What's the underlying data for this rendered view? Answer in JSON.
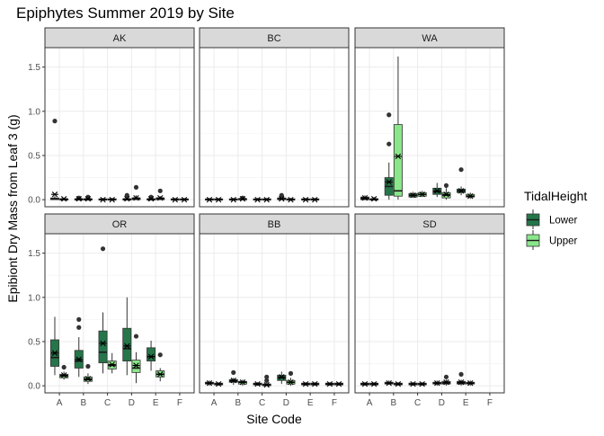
{
  "chart_data": {
    "type": "boxplot",
    "title": "Epiphytes Summer 2019 by Site",
    "xlabel": "Site Code",
    "ylabel": "Epibiont Dry Mass from Leaf 3 (g)",
    "ylim": [
      -0.08,
      1.72
    ],
    "yticks": [
      0.0,
      0.5,
      1.0,
      1.5
    ],
    "ytick_labels": [
      "0.0",
      "0.5",
      "1.0",
      "1.5"
    ],
    "categories": [
      "A",
      "B",
      "C",
      "D",
      "E",
      "F"
    ],
    "grid": true,
    "legend": {
      "title": "TidalHeight",
      "position": "right",
      "entries": [
        {
          "label": "Lower",
          "color": "#25764a"
        },
        {
          "label": "Upper",
          "color": "#8ae68a"
        }
      ]
    },
    "panels": [
      {
        "name": "AK",
        "groups": [
          {
            "site": "A",
            "tide": "Lower",
            "min": 0.0,
            "q1": 0.0,
            "median": 0.01,
            "q3": 0.02,
            "max": 0.04,
            "mean": 0.06,
            "outliers": [
              0.89
            ]
          },
          {
            "site": "A",
            "tide": "Upper",
            "min": 0.0,
            "q1": 0.0,
            "median": 0.0,
            "q3": 0.01,
            "max": 0.02,
            "mean": 0.01,
            "outliers": []
          },
          {
            "site": "B",
            "tide": "Lower",
            "min": 0.0,
            "q1": 0.0,
            "median": 0.0,
            "q3": 0.01,
            "max": 0.02,
            "mean": 0.01,
            "outliers": [
              0.02
            ]
          },
          {
            "site": "B",
            "tide": "Upper",
            "min": 0.0,
            "q1": 0.0,
            "median": 0.0,
            "q3": 0.01,
            "max": 0.02,
            "mean": 0.01,
            "outliers": [
              0.03
            ]
          },
          {
            "site": "C",
            "tide": "Lower",
            "min": 0.0,
            "q1": 0.0,
            "median": 0.0,
            "q3": 0.01,
            "max": 0.02,
            "mean": 0.0,
            "outliers": []
          },
          {
            "site": "C",
            "tide": "Upper",
            "min": 0.0,
            "q1": 0.0,
            "median": 0.0,
            "q3": 0.01,
            "max": 0.02,
            "mean": 0.0,
            "outliers": []
          },
          {
            "site": "D",
            "tide": "Lower",
            "min": 0.0,
            "q1": 0.0,
            "median": 0.0,
            "q3": 0.01,
            "max": 0.03,
            "mean": 0.01,
            "outliers": [
              0.05
            ]
          },
          {
            "site": "D",
            "tide": "Upper",
            "min": 0.0,
            "q1": 0.0,
            "median": 0.01,
            "q3": 0.02,
            "max": 0.05,
            "mean": 0.02,
            "outliers": [
              0.14
            ]
          },
          {
            "site": "E",
            "tide": "Lower",
            "min": 0.0,
            "q1": 0.0,
            "median": 0.0,
            "q3": 0.01,
            "max": 0.02,
            "mean": 0.01,
            "outliers": [
              0.03
            ]
          },
          {
            "site": "E",
            "tide": "Upper",
            "min": 0.0,
            "q1": 0.0,
            "median": 0.01,
            "q3": 0.02,
            "max": 0.04,
            "mean": 0.02,
            "outliers": [
              0.1
            ]
          },
          {
            "site": "F",
            "tide": "Lower",
            "min": 0.0,
            "q1": 0.0,
            "median": 0.0,
            "q3": 0.01,
            "max": 0.02,
            "mean": 0.0,
            "outliers": []
          },
          {
            "site": "F",
            "tide": "Upper",
            "min": 0.0,
            "q1": 0.0,
            "median": 0.0,
            "q3": 0.01,
            "max": 0.02,
            "mean": 0.0,
            "outliers": []
          }
        ]
      },
      {
        "name": "BC",
        "groups": [
          {
            "site": "A",
            "tide": "Lower",
            "min": 0.0,
            "q1": 0.0,
            "median": 0.0,
            "q3": 0.01,
            "max": 0.02,
            "mean": 0.0,
            "outliers": []
          },
          {
            "site": "A",
            "tide": "Upper",
            "min": 0.0,
            "q1": 0.0,
            "median": 0.0,
            "q3": 0.01,
            "max": 0.02,
            "mean": 0.0,
            "outliers": []
          },
          {
            "site": "B",
            "tide": "Lower",
            "min": 0.0,
            "q1": 0.0,
            "median": 0.0,
            "q3": 0.01,
            "max": 0.02,
            "mean": 0.0,
            "outliers": []
          },
          {
            "site": "B",
            "tide": "Upper",
            "min": 0.0,
            "q1": 0.0,
            "median": 0.01,
            "q3": 0.01,
            "max": 0.02,
            "mean": 0.01,
            "outliers": [
              0.02
            ]
          },
          {
            "site": "C",
            "tide": "Lower",
            "min": 0.0,
            "q1": 0.0,
            "median": 0.0,
            "q3": 0.01,
            "max": 0.02,
            "mean": 0.0,
            "outliers": []
          },
          {
            "site": "C",
            "tide": "Upper",
            "min": 0.0,
            "q1": 0.0,
            "median": 0.0,
            "q3": 0.01,
            "max": 0.02,
            "mean": 0.0,
            "outliers": []
          },
          {
            "site": "D",
            "tide": "Lower",
            "min": 0.0,
            "q1": 0.0,
            "median": 0.01,
            "q3": 0.02,
            "max": 0.03,
            "mean": 0.01,
            "outliers": [
              0.04,
              0.05
            ]
          },
          {
            "site": "D",
            "tide": "Upper",
            "min": 0.0,
            "q1": 0.0,
            "median": 0.0,
            "q3": 0.01,
            "max": 0.02,
            "mean": 0.0,
            "outliers": []
          },
          {
            "site": "E",
            "tide": "Lower",
            "min": 0.0,
            "q1": 0.0,
            "median": 0.0,
            "q3": 0.01,
            "max": 0.02,
            "mean": 0.0,
            "outliers": []
          },
          {
            "site": "E",
            "tide": "Upper",
            "min": 0.0,
            "q1": 0.0,
            "median": 0.0,
            "q3": 0.01,
            "max": 0.02,
            "mean": 0.0,
            "outliers": []
          }
        ]
      },
      {
        "name": "WA",
        "groups": [
          {
            "site": "A",
            "tide": "Lower",
            "min": 0.0,
            "q1": 0.0,
            "median": 0.01,
            "q3": 0.03,
            "max": 0.05,
            "mean": 0.02,
            "outliers": []
          },
          {
            "site": "A",
            "tide": "Upper",
            "min": 0.0,
            "q1": 0.0,
            "median": 0.0,
            "q3": 0.01,
            "max": 0.03,
            "mean": 0.01,
            "outliers": []
          },
          {
            "site": "B",
            "tide": "Lower",
            "min": 0.0,
            "q1": 0.05,
            "median": 0.15,
            "q3": 0.25,
            "max": 0.42,
            "mean": 0.2,
            "outliers": [
              0.63,
              0.96
            ]
          },
          {
            "site": "B",
            "tide": "Upper",
            "min": 0.0,
            "q1": 0.04,
            "median": 0.1,
            "q3": 0.85,
            "max": 1.62,
            "mean": 0.49,
            "outliers": []
          },
          {
            "site": "C",
            "tide": "Lower",
            "min": 0.02,
            "q1": 0.03,
            "median": 0.05,
            "q3": 0.07,
            "max": 0.09,
            "mean": 0.05,
            "outliers": []
          },
          {
            "site": "C",
            "tide": "Upper",
            "min": 0.03,
            "q1": 0.04,
            "median": 0.06,
            "q3": 0.08,
            "max": 0.1,
            "mean": 0.06,
            "outliers": []
          },
          {
            "site": "D",
            "tide": "Lower",
            "min": 0.03,
            "q1": 0.06,
            "median": 0.09,
            "q3": 0.13,
            "max": 0.19,
            "mean": 0.1,
            "outliers": []
          },
          {
            "site": "D",
            "tide": "Upper",
            "min": 0.0,
            "q1": 0.02,
            "median": 0.05,
            "q3": 0.08,
            "max": 0.13,
            "mean": 0.06,
            "outliers": [
              0.16
            ]
          },
          {
            "site": "E",
            "tide": "Lower",
            "min": 0.05,
            "q1": 0.08,
            "median": 0.1,
            "q3": 0.12,
            "max": 0.15,
            "mean": 0.1,
            "outliers": [
              0.34
            ]
          },
          {
            "site": "E",
            "tide": "Upper",
            "min": 0.01,
            "q1": 0.03,
            "median": 0.04,
            "q3": 0.06,
            "max": 0.08,
            "mean": 0.04,
            "outliers": []
          }
        ]
      },
      {
        "name": "OR",
        "groups": [
          {
            "site": "A",
            "tide": "Lower",
            "min": 0.12,
            "q1": 0.22,
            "median": 0.32,
            "q3": 0.52,
            "max": 0.78,
            "mean": 0.37,
            "outliers": []
          },
          {
            "site": "A",
            "tide": "Upper",
            "min": 0.07,
            "q1": 0.09,
            "median": 0.11,
            "q3": 0.13,
            "max": 0.16,
            "mean": 0.12,
            "outliers": [
              0.21
            ]
          },
          {
            "site": "B",
            "tide": "Lower",
            "min": 0.1,
            "q1": 0.2,
            "median": 0.28,
            "q3": 0.4,
            "max": 0.55,
            "mean": 0.3,
            "outliers": [
              0.66,
              0.75
            ]
          },
          {
            "site": "B",
            "tide": "Upper",
            "min": 0.02,
            "q1": 0.05,
            "median": 0.07,
            "q3": 0.1,
            "max": 0.14,
            "mean": 0.08,
            "outliers": [
              0.22
            ]
          },
          {
            "site": "C",
            "tide": "Lower",
            "min": 0.14,
            "q1": 0.26,
            "median": 0.38,
            "q3": 0.62,
            "max": 0.83,
            "mean": 0.48,
            "outliers": [
              1.55
            ]
          },
          {
            "site": "C",
            "tide": "Upper",
            "min": 0.14,
            "q1": 0.19,
            "median": 0.23,
            "q3": 0.28,
            "max": 0.37,
            "mean": 0.24,
            "outliers": []
          },
          {
            "site": "D",
            "tide": "Lower",
            "min": 0.12,
            "q1": 0.28,
            "median": 0.42,
            "q3": 0.65,
            "max": 1.0,
            "mean": 0.45,
            "outliers": []
          },
          {
            "site": "D",
            "tide": "Upper",
            "min": 0.03,
            "q1": 0.15,
            "median": 0.2,
            "q3": 0.29,
            "max": 0.38,
            "mean": 0.23,
            "outliers": [
              0.56
            ]
          },
          {
            "site": "E",
            "tide": "Lower",
            "min": 0.17,
            "q1": 0.28,
            "median": 0.33,
            "q3": 0.43,
            "max": 0.51,
            "mean": 0.33,
            "outliers": []
          },
          {
            "site": "E",
            "tide": "Upper",
            "min": 0.05,
            "q1": 0.1,
            "median": 0.13,
            "q3": 0.17,
            "max": 0.2,
            "mean": 0.13,
            "outliers": [
              0.35
            ]
          }
        ]
      },
      {
        "name": "BB",
        "groups": [
          {
            "site": "A",
            "tide": "Lower",
            "min": 0.0,
            "q1": 0.02,
            "median": 0.03,
            "q3": 0.04,
            "max": 0.06,
            "mean": 0.03,
            "outliers": []
          },
          {
            "site": "A",
            "tide": "Upper",
            "min": 0.0,
            "q1": 0.01,
            "median": 0.02,
            "q3": 0.03,
            "max": 0.04,
            "mean": 0.02,
            "outliers": []
          },
          {
            "site": "B",
            "tide": "Lower",
            "min": 0.01,
            "q1": 0.04,
            "median": 0.05,
            "q3": 0.07,
            "max": 0.09,
            "mean": 0.06,
            "outliers": [
              0.15
            ]
          },
          {
            "site": "B",
            "tide": "Upper",
            "min": 0.0,
            "q1": 0.02,
            "median": 0.04,
            "q3": 0.05,
            "max": 0.07,
            "mean": 0.04,
            "outliers": []
          },
          {
            "site": "C",
            "tide": "Lower",
            "min": 0.0,
            "q1": 0.01,
            "median": 0.02,
            "q3": 0.03,
            "max": 0.04,
            "mean": 0.02,
            "outliers": []
          },
          {
            "site": "C",
            "tide": "Upper",
            "min": 0.0,
            "q1": 0.0,
            "median": 0.01,
            "q3": 0.02,
            "max": 0.04,
            "mean": 0.01,
            "outliers": [
              0.06,
              0.1
            ]
          },
          {
            "site": "D",
            "tide": "Lower",
            "min": 0.02,
            "q1": 0.06,
            "median": 0.09,
            "q3": 0.12,
            "max": 0.16,
            "mean": 0.1,
            "outliers": []
          },
          {
            "site": "D",
            "tide": "Upper",
            "min": 0.0,
            "q1": 0.02,
            "median": 0.04,
            "q3": 0.06,
            "max": 0.09,
            "mean": 0.04,
            "outliers": [
              0.14
            ]
          },
          {
            "site": "E",
            "tide": "Lower",
            "min": 0.0,
            "q1": 0.01,
            "median": 0.02,
            "q3": 0.03,
            "max": 0.04,
            "mean": 0.02,
            "outliers": []
          },
          {
            "site": "E",
            "tide": "Upper",
            "min": 0.0,
            "q1": 0.01,
            "median": 0.02,
            "q3": 0.03,
            "max": 0.04,
            "mean": 0.02,
            "outliers": []
          },
          {
            "site": "F",
            "tide": "Lower",
            "min": 0.0,
            "q1": 0.01,
            "median": 0.02,
            "q3": 0.03,
            "max": 0.04,
            "mean": 0.02,
            "outliers": []
          },
          {
            "site": "F",
            "tide": "Upper",
            "min": 0.0,
            "q1": 0.01,
            "median": 0.02,
            "q3": 0.03,
            "max": 0.04,
            "mean": 0.02,
            "outliers": []
          }
        ]
      },
      {
        "name": "SD",
        "groups": [
          {
            "site": "A",
            "tide": "Lower",
            "min": 0.0,
            "q1": 0.01,
            "median": 0.02,
            "q3": 0.03,
            "max": 0.04,
            "mean": 0.02,
            "outliers": []
          },
          {
            "site": "A",
            "tide": "Upper",
            "min": 0.0,
            "q1": 0.01,
            "median": 0.02,
            "q3": 0.03,
            "max": 0.04,
            "mean": 0.02,
            "outliers": []
          },
          {
            "site": "B",
            "tide": "Lower",
            "min": 0.01,
            "q1": 0.02,
            "median": 0.03,
            "q3": 0.04,
            "max": 0.06,
            "mean": 0.03,
            "outliers": []
          },
          {
            "site": "B",
            "tide": "Upper",
            "min": 0.0,
            "q1": 0.01,
            "median": 0.02,
            "q3": 0.03,
            "max": 0.04,
            "mean": 0.02,
            "outliers": []
          },
          {
            "site": "C",
            "tide": "Lower",
            "min": 0.0,
            "q1": 0.01,
            "median": 0.02,
            "q3": 0.03,
            "max": 0.04,
            "mean": 0.02,
            "outliers": []
          },
          {
            "site": "C",
            "tide": "Upper",
            "min": 0.0,
            "q1": 0.01,
            "median": 0.02,
            "q3": 0.03,
            "max": 0.04,
            "mean": 0.02,
            "outliers": []
          },
          {
            "site": "D",
            "tide": "Lower",
            "min": 0.0,
            "q1": 0.02,
            "median": 0.03,
            "q3": 0.04,
            "max": 0.06,
            "mean": 0.03,
            "outliers": []
          },
          {
            "site": "D",
            "tide": "Upper",
            "min": 0.0,
            "q1": 0.02,
            "median": 0.03,
            "q3": 0.05,
            "max": 0.07,
            "mean": 0.04,
            "outliers": [
              0.1
            ]
          },
          {
            "site": "E",
            "tide": "Lower",
            "min": 0.0,
            "q1": 0.02,
            "median": 0.03,
            "q3": 0.05,
            "max": 0.07,
            "mean": 0.04,
            "outliers": [
              0.13
            ]
          },
          {
            "site": "E",
            "tide": "Upper",
            "min": 0.0,
            "q1": 0.02,
            "median": 0.03,
            "q3": 0.04,
            "max": 0.06,
            "mean": 0.03,
            "outliers": []
          }
        ]
      }
    ]
  }
}
